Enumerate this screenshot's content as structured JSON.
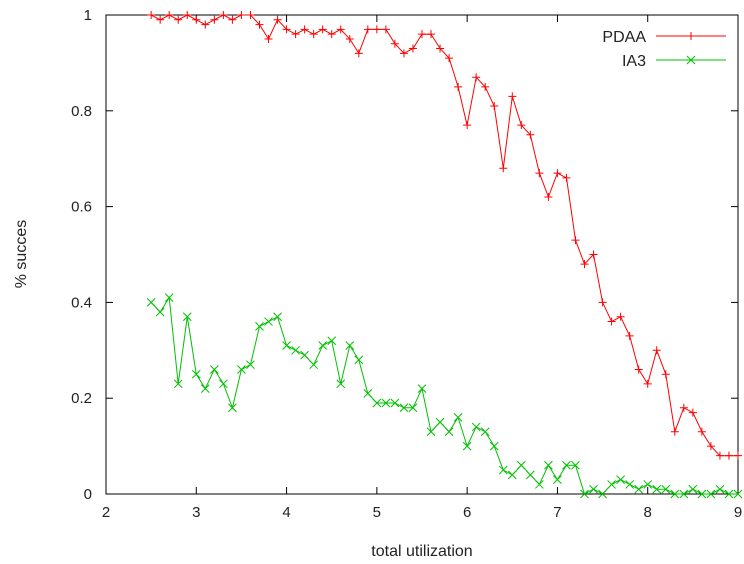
{
  "chart_data": {
    "type": "line",
    "title": "",
    "xlabel": "total utilization",
    "ylabel": "% succes",
    "xlim": [
      2,
      9
    ],
    "ylim": [
      0,
      1
    ],
    "xticks": [
      2,
      3,
      4,
      5,
      6,
      7,
      8,
      9
    ],
    "yticks": [
      0,
      0.2,
      0.4,
      0.6,
      0.8,
      1
    ],
    "ytick_labels": [
      "0",
      "0.2",
      "0.4",
      "0.6",
      "0.8",
      "1"
    ],
    "grid": false,
    "legend_position": "top-right",
    "series": [
      {
        "name": "PDAA",
        "color": "#ff0000",
        "marker": "plus",
        "x": [
          2.5,
          2.6,
          2.7,
          2.8,
          2.9,
          3.0,
          3.1,
          3.2,
          3.3,
          3.4,
          3.5,
          3.6,
          3.7,
          3.8,
          3.9,
          4.0,
          4.1,
          4.2,
          4.3,
          4.4,
          4.5,
          4.6,
          4.7,
          4.8,
          4.9,
          5.0,
          5.1,
          5.2,
          5.3,
          5.4,
          5.5,
          5.6,
          5.7,
          5.8,
          5.9,
          6.0,
          6.1,
          6.2,
          6.3,
          6.4,
          6.5,
          6.6,
          6.7,
          6.8,
          6.9,
          7.0,
          7.1,
          7.2,
          7.3,
          7.4,
          7.5,
          7.6,
          7.7,
          7.8,
          7.9,
          8.0,
          8.1,
          8.2,
          8.3,
          8.4,
          8.5,
          8.6,
          8.7,
          8.8,
          8.9,
          9.0
        ],
        "y": [
          1.0,
          0.99,
          1.0,
          0.99,
          1.0,
          0.99,
          0.98,
          0.99,
          1.0,
          0.99,
          1.0,
          1.0,
          0.98,
          0.95,
          0.99,
          0.97,
          0.96,
          0.97,
          0.96,
          0.97,
          0.96,
          0.97,
          0.95,
          0.92,
          0.97,
          0.97,
          0.97,
          0.94,
          0.92,
          0.93,
          0.96,
          0.96,
          0.93,
          0.91,
          0.85,
          0.77,
          0.87,
          0.85,
          0.81,
          0.68,
          0.83,
          0.77,
          0.75,
          0.67,
          0.62,
          0.67,
          0.66,
          0.53,
          0.48,
          0.5,
          0.4,
          0.36,
          0.37,
          0.33,
          0.26,
          0.23,
          0.3,
          0.25,
          0.13,
          0.18,
          0.17,
          0.13,
          0.1,
          0.08,
          0.08,
          0.08
        ]
      },
      {
        "name": "IA3",
        "color": "#00c000",
        "marker": "cross",
        "x": [
          2.5,
          2.6,
          2.7,
          2.8,
          2.9,
          3.0,
          3.1,
          3.2,
          3.3,
          3.4,
          3.5,
          3.6,
          3.7,
          3.8,
          3.9,
          4.0,
          4.1,
          4.2,
          4.3,
          4.4,
          4.5,
          4.6,
          4.7,
          4.8,
          4.9,
          5.0,
          5.1,
          5.2,
          5.3,
          5.4,
          5.5,
          5.6,
          5.7,
          5.8,
          5.9,
          6.0,
          6.1,
          6.2,
          6.3,
          6.4,
          6.5,
          6.6,
          6.7,
          6.8,
          6.9,
          7.0,
          7.1,
          7.2,
          7.3,
          7.4,
          7.5,
          7.6,
          7.7,
          7.8,
          7.9,
          8.0,
          8.1,
          8.2,
          8.3,
          8.4,
          8.5,
          8.6,
          8.7,
          8.8,
          8.9,
          9.0
        ],
        "y": [
          0.4,
          0.38,
          0.41,
          0.23,
          0.37,
          0.25,
          0.22,
          0.26,
          0.23,
          0.18,
          0.26,
          0.27,
          0.35,
          0.36,
          0.37,
          0.31,
          0.3,
          0.29,
          0.27,
          0.31,
          0.32,
          0.23,
          0.31,
          0.28,
          0.21,
          0.19,
          0.19,
          0.19,
          0.18,
          0.18,
          0.22,
          0.13,
          0.15,
          0.13,
          0.16,
          0.1,
          0.14,
          0.13,
          0.1,
          0.05,
          0.04,
          0.06,
          0.04,
          0.02,
          0.06,
          0.03,
          0.06,
          0.06,
          0.0,
          0.01,
          0.0,
          0.02,
          0.03,
          0.02,
          0.01,
          0.02,
          0.01,
          0.01,
          0.0,
          0.0,
          0.01,
          0.0,
          0.0,
          0.01,
          0.0,
          0.0
        ]
      }
    ]
  }
}
